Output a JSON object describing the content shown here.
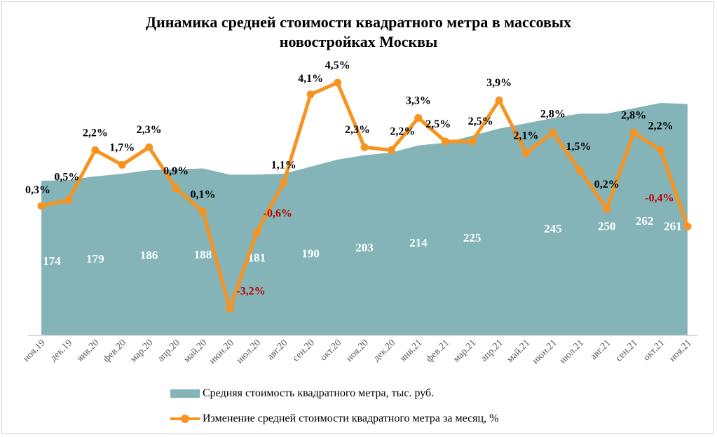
{
  "chart_data": {
    "type": "area+line",
    "title_line1": "Динамика средней стоимости квадратного метра в массовых",
    "title_line2": "новостройках Москвы",
    "categories": [
      "ноя.19",
      "дек.19",
      "янв.20",
      "фев.20",
      "мар.20",
      "апр.20",
      "май.20",
      "июн.20",
      "июл.20",
      "авг.20",
      "сен.20",
      "окт.20",
      "ноя.20",
      "дек.20",
      "янв.21",
      "фев.21",
      "мар.21",
      "апр.21",
      "май.21",
      "июн.21",
      "июл.21",
      "авг.21",
      "сен.21",
      "окт.21",
      "ноя.21"
    ],
    "series": [
      {
        "name": "Средняя стоимость квадратного метра, тыс. руб.",
        "type": "area",
        "color": "#84b4b8",
        "values": [
          174,
          175,
          179,
          182,
          186,
          187,
          188,
          181,
          181,
          182,
          190,
          198,
          203,
          206,
          214,
          217,
          225,
          233,
          239,
          245,
          250,
          250,
          256,
          262,
          261
        ],
        "labels": [
          "174",
          null,
          "179",
          null,
          "186",
          null,
          "188",
          null,
          "181",
          null,
          "190",
          null,
          "203",
          null,
          "214",
          null,
          "225",
          null,
          null,
          "245",
          null,
          "250",
          null,
          "262",
          "261"
        ]
      },
      {
        "name": "Изменение средней стоимости квадратного метра за месяц, %",
        "type": "line",
        "color": "#f7931e",
        "values": [
          0.3,
          0.5,
          2.2,
          1.7,
          2.3,
          0.9,
          0.1,
          -3.2,
          -0.6,
          1.1,
          4.1,
          4.5,
          2.3,
          2.2,
          3.3,
          2.5,
          2.5,
          3.9,
          2.1,
          2.8,
          1.5,
          0.2,
          2.8,
          2.2,
          -0.4
        ],
        "labels": [
          "0,3%",
          "0,5%",
          "2,2%",
          "1,7%",
          "2,3%",
          "0,9%",
          "0,1%",
          "-3,2%",
          "-0,6%",
          "1,1%",
          "4,1%",
          "4,5%",
          "2,3%",
          "2,2%",
          "3,3%",
          "2,5%",
          "2,5%",
          "3,9%",
          "2,1%",
          "2,8%",
          "1,5%",
          "0,2%",
          "2,8%",
          "2,2%",
          "-0,4%"
        ]
      }
    ],
    "negative_label_color": "#c00000",
    "ylim_primary": [
      0,
      380
    ],
    "ylim_secondary": [
      -4.1,
      7.3
    ],
    "legend_position": "bottom",
    "grid": false
  }
}
